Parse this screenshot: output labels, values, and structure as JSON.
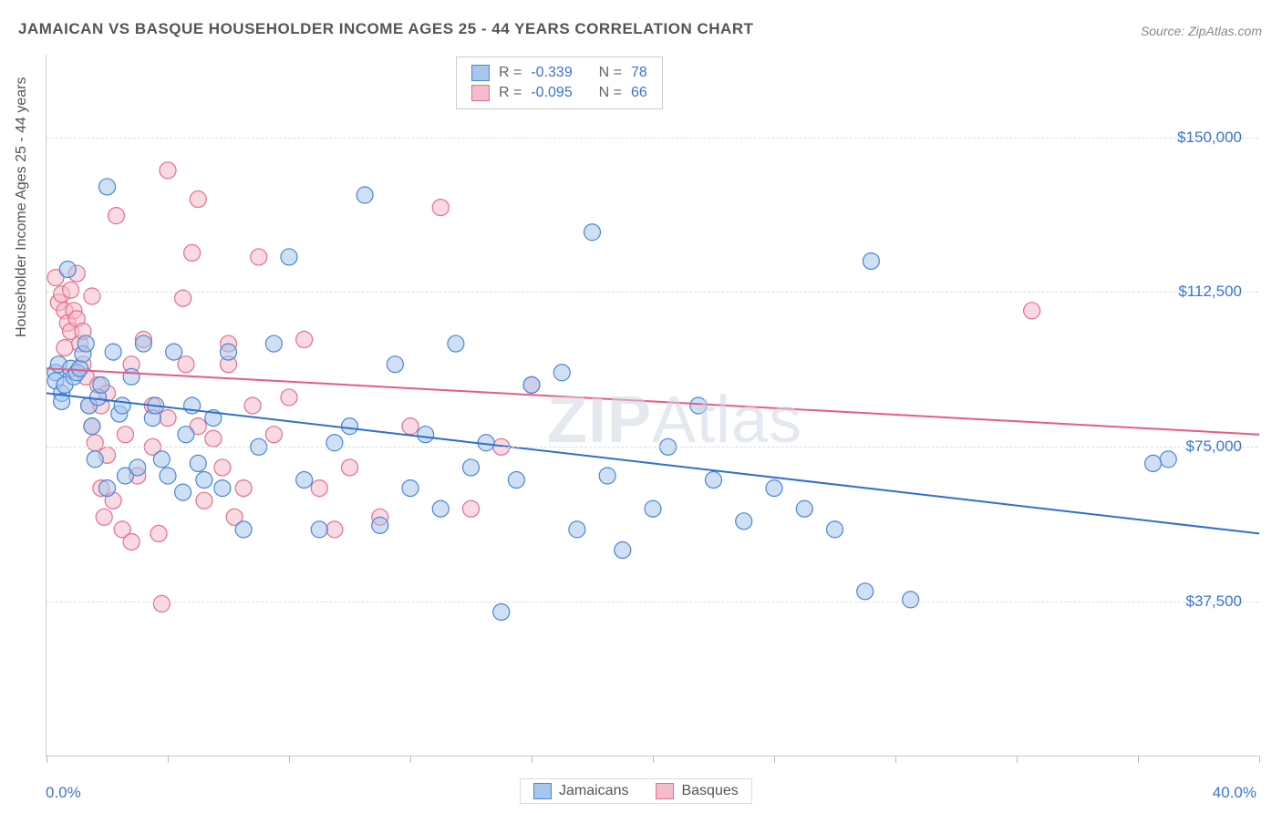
{
  "title": "JAMAICAN VS BASQUE HOUSEHOLDER INCOME AGES 25 - 44 YEARS CORRELATION CHART",
  "source": "Source: ZipAtlas.com",
  "ylabel": "Householder Income Ages 25 - 44 years",
  "watermark_a": "ZIP",
  "watermark_b": "Atlas",
  "chart": {
    "type": "scatter",
    "xlim": [
      0,
      40
    ],
    "ylim": [
      0,
      170000
    ],
    "x_tick_positions": [
      0,
      4,
      8,
      12,
      16,
      20,
      24,
      28,
      32,
      36,
      40
    ],
    "x_tick_labels": {
      "left": "0.0%",
      "right": "40.0%"
    },
    "y_gridlines": [
      37500,
      75000,
      112500,
      150000
    ],
    "y_tick_labels": [
      "$37,500",
      "$75,000",
      "$112,500",
      "$150,000"
    ],
    "background_color": "#ffffff",
    "grid_color": "#dddddd",
    "axis_color": "#cccccc",
    "tick_label_color": "#3b74d1",
    "marker_radius": 9,
    "marker_opacity": 0.55,
    "line_width": 2
  },
  "series": [
    {
      "name": "Jamaicans",
      "fill": "#a7c6ed",
      "stroke": "#4a86d4",
      "line_color": "#2f70cf",
      "R": "-0.339",
      "N": "78",
      "trend": {
        "x1": 0,
        "y1": 88000,
        "x2": 40,
        "y2": 54000
      },
      "points": [
        [
          0.3,
          93000
        ],
        [
          0.3,
          91000
        ],
        [
          0.4,
          95000
        ],
        [
          0.5,
          88000
        ],
        [
          0.5,
          86000
        ],
        [
          0.6,
          90000
        ],
        [
          0.7,
          118000
        ],
        [
          0.8,
          94000
        ],
        [
          0.9,
          92000
        ],
        [
          1.0,
          93000
        ],
        [
          1.1,
          94000
        ],
        [
          1.2,
          97500
        ],
        [
          1.3,
          100000
        ],
        [
          1.4,
          85000
        ],
        [
          1.5,
          80000
        ],
        [
          1.6,
          72000
        ],
        [
          1.7,
          87000
        ],
        [
          1.8,
          90000
        ],
        [
          2.0,
          65000
        ],
        [
          2.0,
          138000
        ],
        [
          2.2,
          98000
        ],
        [
          2.4,
          83000
        ],
        [
          2.5,
          85000
        ],
        [
          2.6,
          68000
        ],
        [
          2.8,
          92000
        ],
        [
          3.0,
          70000
        ],
        [
          3.2,
          100000
        ],
        [
          3.5,
          82000
        ],
        [
          3.6,
          85000
        ],
        [
          3.8,
          72000
        ],
        [
          4.0,
          68000
        ],
        [
          4.2,
          98000
        ],
        [
          4.5,
          64000
        ],
        [
          4.6,
          78000
        ],
        [
          4.8,
          85000
        ],
        [
          5.0,
          71000
        ],
        [
          5.2,
          67000
        ],
        [
          5.5,
          82000
        ],
        [
          5.8,
          65000
        ],
        [
          6.0,
          98000
        ],
        [
          6.5,
          55000
        ],
        [
          7.0,
          75000
        ],
        [
          7.5,
          100000
        ],
        [
          8.0,
          121000
        ],
        [
          8.5,
          67000
        ],
        [
          9.0,
          55000
        ],
        [
          9.5,
          76000
        ],
        [
          10.0,
          80000
        ],
        [
          10.5,
          136000
        ],
        [
          11.0,
          56000
        ],
        [
          11.5,
          95000
        ],
        [
          12.0,
          65000
        ],
        [
          12.5,
          78000
        ],
        [
          13.0,
          60000
        ],
        [
          13.5,
          100000
        ],
        [
          14.0,
          70000
        ],
        [
          14.5,
          76000
        ],
        [
          15.0,
          35000
        ],
        [
          15.5,
          67000
        ],
        [
          16.0,
          90000
        ],
        [
          17.0,
          93000
        ],
        [
          17.5,
          55000
        ],
        [
          18.0,
          127000
        ],
        [
          18.5,
          68000
        ],
        [
          19.0,
          50000
        ],
        [
          20.0,
          60000
        ],
        [
          20.5,
          75000
        ],
        [
          21.5,
          85000
        ],
        [
          22.0,
          67000
        ],
        [
          23.0,
          57000
        ],
        [
          24.0,
          65000
        ],
        [
          25.0,
          60000
        ],
        [
          26.0,
          55000
        ],
        [
          27.0,
          40000
        ],
        [
          27.2,
          120000
        ],
        [
          28.5,
          38000
        ],
        [
          36.5,
          71000
        ],
        [
          37.0,
          72000
        ]
      ]
    },
    {
      "name": "Basques",
      "fill": "#f4bccb",
      "stroke": "#e56e8e",
      "line_color": "#e85b83",
      "R": "-0.095",
      "N": "66",
      "trend": {
        "x1": 0,
        "y1": 94000,
        "x2": 40,
        "y2": 78000
      },
      "points": [
        [
          0.3,
          116000
        ],
        [
          0.4,
          110000
        ],
        [
          0.5,
          112000
        ],
        [
          0.6,
          99000
        ],
        [
          0.6,
          108000
        ],
        [
          0.7,
          105000
        ],
        [
          0.8,
          103000
        ],
        [
          0.8,
          113000
        ],
        [
          0.9,
          108000
        ],
        [
          1.0,
          117000
        ],
        [
          1.0,
          106000
        ],
        [
          1.1,
          100000
        ],
        [
          1.2,
          103000
        ],
        [
          1.2,
          95000
        ],
        [
          1.3,
          92000
        ],
        [
          1.4,
          85000
        ],
        [
          1.5,
          111500
        ],
        [
          1.5,
          80000
        ],
        [
          1.6,
          76000
        ],
        [
          1.7,
          90000
        ],
        [
          1.8,
          65000
        ],
        [
          1.8,
          85000
        ],
        [
          1.9,
          58000
        ],
        [
          2.0,
          73000
        ],
        [
          2.0,
          88000
        ],
        [
          2.2,
          62000
        ],
        [
          2.3,
          131000
        ],
        [
          2.5,
          55000
        ],
        [
          2.6,
          78000
        ],
        [
          2.8,
          95000
        ],
        [
          2.8,
          52000
        ],
        [
          3.0,
          68000
        ],
        [
          3.2,
          101000
        ],
        [
          3.5,
          75000
        ],
        [
          3.5,
          85000
        ],
        [
          3.7,
          54000
        ],
        [
          3.8,
          37000
        ],
        [
          4.0,
          142000
        ],
        [
          4.0,
          82000
        ],
        [
          4.5,
          111000
        ],
        [
          4.6,
          95000
        ],
        [
          4.8,
          122000
        ],
        [
          5.0,
          80000
        ],
        [
          5.0,
          135000
        ],
        [
          5.2,
          62000
        ],
        [
          5.5,
          77000
        ],
        [
          5.8,
          70000
        ],
        [
          6.0,
          95000
        ],
        [
          6.0,
          100000
        ],
        [
          6.2,
          58000
        ],
        [
          6.5,
          65000
        ],
        [
          6.8,
          85000
        ],
        [
          7.0,
          121000
        ],
        [
          7.5,
          78000
        ],
        [
          8.0,
          87000
        ],
        [
          8.5,
          101000
        ],
        [
          9.0,
          65000
        ],
        [
          9.5,
          55000
        ],
        [
          10.0,
          70000
        ],
        [
          11.0,
          58000
        ],
        [
          12.0,
          80000
        ],
        [
          13.0,
          133000
        ],
        [
          14.0,
          60000
        ],
        [
          15.0,
          75000
        ],
        [
          16.0,
          90000
        ],
        [
          32.5,
          108000
        ]
      ]
    }
  ],
  "legend": {
    "stats_labels": {
      "R": "R =",
      "N": "N ="
    }
  }
}
